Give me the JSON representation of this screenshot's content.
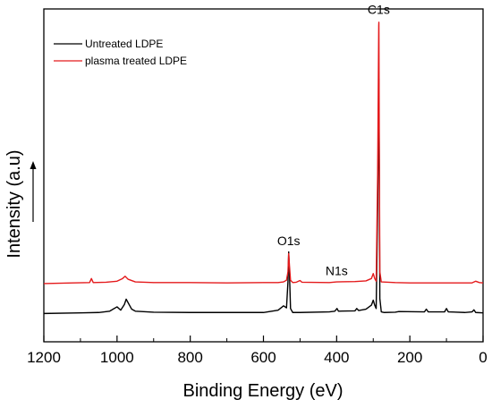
{
  "chart_data": {
    "type": "line",
    "title": "",
    "xlabel": "Binding Energy (eV)",
    "ylabel": "Intensity (a.u)",
    "xlim": [
      1200,
      0
    ],
    "x_reversed": true,
    "ylim": [
      0,
      1
    ],
    "x_ticks": [
      1200,
      1000,
      800,
      600,
      400,
      200,
      0
    ],
    "y_ticks_shown": false,
    "grid": false,
    "legend_position": "top-left",
    "series": [
      {
        "name": "Untreated LDPE",
        "color": "#000000",
        "baseline": 0.085,
        "points": [
          [
            1200,
            0.085
          ],
          [
            1100,
            0.087
          ],
          [
            1050,
            0.088
          ],
          [
            1020,
            0.092
          ],
          [
            1000,
            0.105
          ],
          [
            990,
            0.095
          ],
          [
            980,
            0.112
          ],
          [
            975,
            0.128
          ],
          [
            970,
            0.118
          ],
          [
            960,
            0.098
          ],
          [
            950,
            0.092
          ],
          [
            900,
            0.089
          ],
          [
            800,
            0.088
          ],
          [
            700,
            0.088
          ],
          [
            600,
            0.088
          ],
          [
            560,
            0.095
          ],
          [
            545,
            0.108
          ],
          [
            537,
            0.102
          ],
          [
            533,
            0.18
          ],
          [
            531,
            0.27
          ],
          [
            529,
            0.21
          ],
          [
            526,
            0.1
          ],
          [
            520,
            0.088
          ],
          [
            500,
            0.088
          ],
          [
            420,
            0.09
          ],
          [
            405,
            0.092
          ],
          [
            399,
            0.1
          ],
          [
            395,
            0.092
          ],
          [
            350,
            0.093
          ],
          [
            345,
            0.1
          ],
          [
            340,
            0.094
          ],
          [
            320,
            0.098
          ],
          [
            305,
            0.11
          ],
          [
            300,
            0.125
          ],
          [
            296,
            0.11
          ],
          [
            292,
            0.1
          ],
          [
            288,
            0.4
          ],
          [
            285,
            0.78
          ],
          [
            284.6,
            0.79
          ],
          [
            283.5,
            0.5
          ],
          [
            282,
            0.13
          ],
          [
            278,
            0.09
          ],
          [
            270,
            0.088
          ],
          [
            240,
            0.089
          ],
          [
            230,
            0.091
          ],
          [
            160,
            0.09
          ],
          [
            155,
            0.098
          ],
          [
            150,
            0.09
          ],
          [
            105,
            0.09
          ],
          [
            100,
            0.1
          ],
          [
            95,
            0.09
          ],
          [
            50,
            0.088
          ],
          [
            30,
            0.09
          ],
          [
            25,
            0.096
          ],
          [
            20,
            0.088
          ],
          [
            0,
            0.087
          ]
        ]
      },
      {
        "name": "plasma treated LDPE",
        "color": "#e41a1c",
        "baseline": 0.175,
        "points": [
          [
            1200,
            0.175
          ],
          [
            1120,
            0.177
          ],
          [
            1075,
            0.178
          ],
          [
            1070,
            0.19
          ],
          [
            1065,
            0.178
          ],
          [
            1030,
            0.179
          ],
          [
            1000,
            0.182
          ],
          [
            985,
            0.19
          ],
          [
            978,
            0.197
          ],
          [
            970,
            0.188
          ],
          [
            950,
            0.18
          ],
          [
            900,
            0.178
          ],
          [
            800,
            0.178
          ],
          [
            700,
            0.177
          ],
          [
            600,
            0.178
          ],
          [
            560,
            0.178
          ],
          [
            545,
            0.18
          ],
          [
            537,
            0.185
          ],
          [
            533,
            0.21
          ],
          [
            531,
            0.265
          ],
          [
            529,
            0.23
          ],
          [
            526,
            0.185
          ],
          [
            520,
            0.178
          ],
          [
            510,
            0.179
          ],
          [
            500,
            0.184
          ],
          [
            495,
            0.179
          ],
          [
            420,
            0.178
          ],
          [
            400,
            0.18
          ],
          [
            350,
            0.181
          ],
          [
            320,
            0.183
          ],
          [
            305,
            0.19
          ],
          [
            300,
            0.205
          ],
          [
            296,
            0.19
          ],
          [
            292,
            0.182
          ],
          [
            288,
            0.5
          ],
          [
            285,
            0.95
          ],
          [
            284.6,
            0.96
          ],
          [
            283.5,
            0.6
          ],
          [
            282,
            0.21
          ],
          [
            278,
            0.18
          ],
          [
            240,
            0.178
          ],
          [
            200,
            0.177
          ],
          [
            100,
            0.177
          ],
          [
            30,
            0.177
          ],
          [
            20,
            0.182
          ],
          [
            10,
            0.178
          ],
          [
            0,
            0.177
          ]
        ]
      }
    ],
    "annotations": [
      {
        "text": "C1s",
        "x": 285,
        "y": 0.985
      },
      {
        "text": "O1s",
        "x": 531,
        "y": 0.29
      },
      {
        "text": "N1s",
        "x": 400,
        "y": 0.2
      }
    ]
  }
}
